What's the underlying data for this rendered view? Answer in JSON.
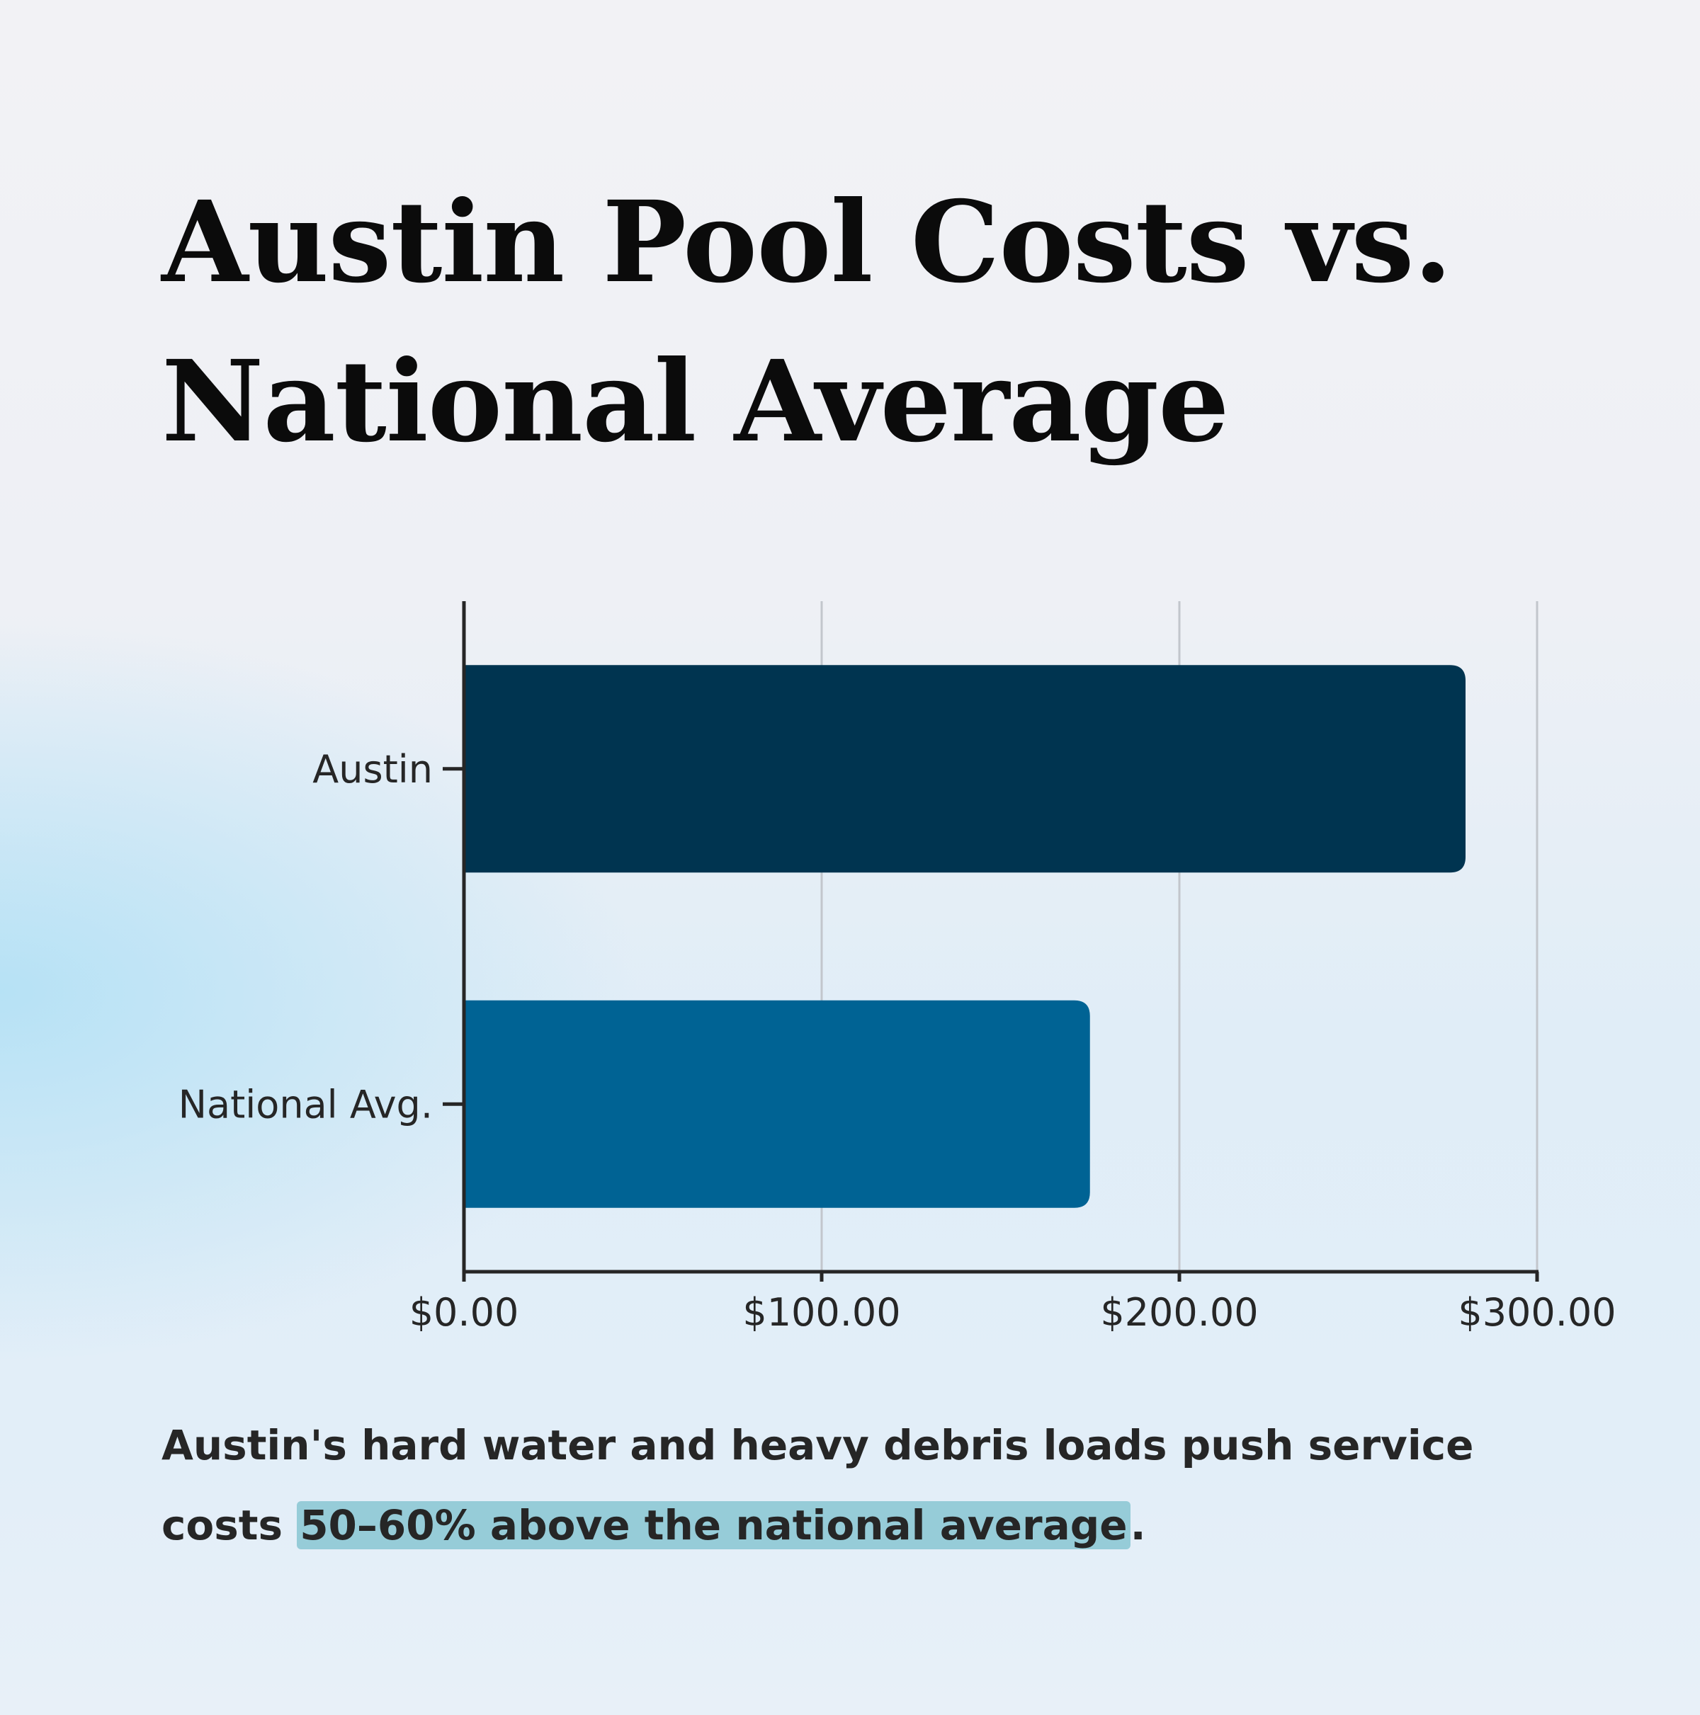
{
  "chart_data": {
    "type": "bar",
    "orientation": "horizontal",
    "title": "Austin Pool Costs vs. National Average",
    "categories": [
      "Austin",
      "National Avg."
    ],
    "values": [
      280,
      175
    ],
    "colors": [
      "#003450",
      "#006394"
    ],
    "xlim": [
      0,
      300
    ],
    "xticks": [
      0,
      100,
      200,
      300
    ],
    "xtick_labels": [
      "$0.00",
      "$100.00",
      "$200.00",
      "$300.00"
    ],
    "xlabel": "",
    "ylabel": "",
    "grid": "vertical"
  },
  "caption": {
    "before": "Austin's hard water and heavy debris loads push service costs ",
    "highlight": "50–60% above the national average",
    "after": ".",
    "highlight_color": "#96ccd8"
  }
}
